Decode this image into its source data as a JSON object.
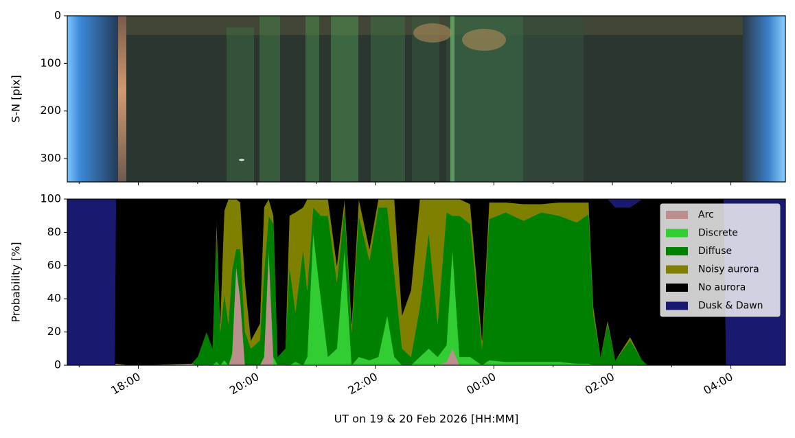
{
  "chart_data": [
    {
      "type": "image",
      "ylabel": "S-N [pix]",
      "ylim": [
        0,
        349
      ],
      "yticks": [
        0,
        100,
        200,
        300
      ],
      "inverted_y": true
    },
    {
      "type": "stacked_area",
      "xlabel": "UT on 19 & 20 Feb 2026 [HH:MM]",
      "ylabel": "Probability [%]",
      "xlim": [
        16.8,
        28.92
      ],
      "xticks": [
        {
          "value": 18,
          "label": "18:00"
        },
        {
          "value": 20,
          "label": "20:00"
        },
        {
          "value": 22,
          "label": "22:00"
        },
        {
          "value": 24,
          "label": "00:00"
        },
        {
          "value": 26,
          "label": "02:00"
        },
        {
          "value": 28,
          "label": "04:00"
        }
      ],
      "xminor_ticks": [
        17,
        19,
        21,
        23,
        25,
        27
      ],
      "ylim": [
        0,
        100
      ],
      "yticks": [
        0,
        20,
        40,
        60,
        80,
        100
      ],
      "legend": "upper right",
      "x": [
        16.8,
        17.6,
        17.62,
        17.9,
        18.9,
        19.0,
        19.15,
        19.25,
        19.32,
        19.38,
        19.45,
        19.52,
        19.58,
        19.65,
        19.72,
        19.8,
        19.9,
        20.05,
        20.12,
        20.2,
        20.28,
        20.35,
        20.48,
        20.55,
        20.65,
        20.78,
        20.85,
        20.95,
        21.08,
        21.2,
        21.35,
        21.48,
        21.6,
        21.72,
        21.9,
        22.05,
        22.2,
        22.32,
        22.45,
        22.6,
        22.75,
        22.9,
        23.05,
        23.2,
        23.3,
        23.42,
        23.6,
        23.8,
        23.92,
        24.2,
        24.5,
        24.8,
        25.1,
        25.4,
        25.6,
        25.68,
        25.8,
        25.92,
        26.05,
        26.3,
        26.5,
        26.6,
        27.88,
        27.92,
        28.92
      ],
      "series": [
        {
          "name": "Arc",
          "color": "#bc8f8f",
          "values": [
            0,
            0,
            1,
            0,
            1,
            0,
            0,
            0,
            0,
            0,
            0,
            0,
            5,
            60,
            40,
            0,
            0,
            0,
            5,
            70,
            0,
            0,
            0,
            0,
            0,
            0,
            0,
            0,
            0,
            0,
            0,
            0,
            0,
            0,
            0,
            0,
            0,
            0,
            0,
            0,
            0,
            0,
            0,
            2,
            10,
            0,
            0,
            0,
            0,
            0,
            0,
            0,
            0,
            0,
            0,
            0,
            0,
            0,
            0,
            0,
            0,
            0,
            0,
            0,
            0
          ]
        },
        {
          "name": "Discrete",
          "color": "#32cd32",
          "values": [
            0,
            0,
            0,
            0,
            0,
            0,
            0,
            0,
            2,
            0,
            3,
            0,
            2,
            0,
            0,
            0,
            0,
            0,
            0,
            0,
            5,
            0,
            0,
            0,
            2,
            0,
            5,
            80,
            40,
            5,
            10,
            70,
            0,
            5,
            3,
            5,
            30,
            5,
            0,
            0,
            5,
            10,
            5,
            10,
            60,
            5,
            5,
            0,
            3,
            2,
            2,
            2,
            2,
            1,
            1,
            0,
            0,
            0,
            0,
            0,
            0,
            0,
            0,
            0,
            0
          ]
        },
        {
          "name": "Diffuse",
          "color": "#008000",
          "values": [
            0,
            0,
            0,
            0,
            0,
            5,
            20,
            10,
            80,
            20,
            40,
            25,
            50,
            10,
            30,
            20,
            10,
            15,
            50,
            20,
            80,
            5,
            10,
            60,
            30,
            70,
            40,
            15,
            50,
            85,
            40,
            25,
            20,
            85,
            60,
            90,
            65,
            50,
            10,
            5,
            30,
            70,
            20,
            80,
            20,
            85,
            80,
            10,
            85,
            90,
            85,
            90,
            88,
            85,
            90,
            30,
            5,
            25,
            3,
            15,
            3,
            0,
            0,
            0,
            0
          ]
        },
        {
          "name": "Noisy aurora",
          "color": "#808000",
          "values": [
            0,
            0,
            0,
            0,
            0,
            0,
            0,
            0,
            5,
            5,
            50,
            75,
            43,
            30,
            28,
            30,
            5,
            10,
            40,
            10,
            5,
            0,
            0,
            30,
            60,
            25,
            55,
            5,
            10,
            10,
            10,
            5,
            5,
            10,
            7,
            5,
            5,
            45,
            20,
            40,
            65,
            20,
            75,
            8,
            10,
            10,
            12,
            5,
            10,
            6,
            10,
            5,
            8,
            12,
            7,
            5,
            0,
            2,
            0,
            2,
            0,
            0,
            0,
            0,
            0
          ]
        },
        {
          "name": "No aurora",
          "color": "#000000",
          "values": [
            0,
            0,
            99,
            100,
            99,
            95,
            80,
            90,
            13,
            75,
            7,
            0,
            0,
            0,
            2,
            50,
            85,
            75,
            5,
            0,
            10,
            95,
            90,
            10,
            8,
            5,
            0,
            0,
            0,
            0,
            40,
            0,
            75,
            0,
            30,
            0,
            0,
            0,
            70,
            55,
            0,
            0,
            0,
            0,
            0,
            0,
            3,
            85,
            2,
            2,
            3,
            3,
            2,
            2,
            2,
            65,
            95,
            73,
            92,
            78,
            97,
            100,
            100,
            0,
            0
          ]
        },
        {
          "name": "Dusk & Dawn",
          "color": "#191970",
          "values": [
            100,
            100,
            0,
            0,
            0,
            0,
            0,
            0,
            0,
            0,
            0,
            0,
            0,
            0,
            0,
            0,
            0,
            0,
            0,
            0,
            0,
            0,
            0,
            0,
            0,
            0,
            0,
            0,
            0,
            0,
            0,
            0,
            0,
            0,
            0,
            0,
            0,
            0,
            0,
            0,
            0,
            0,
            0,
            0,
            0,
            0,
            0,
            0,
            0,
            0,
            0,
            0,
            0,
            0,
            0,
            0,
            0,
            0,
            5,
            5,
            0,
            0,
            0,
            100,
            100
          ]
        }
      ]
    }
  ]
}
